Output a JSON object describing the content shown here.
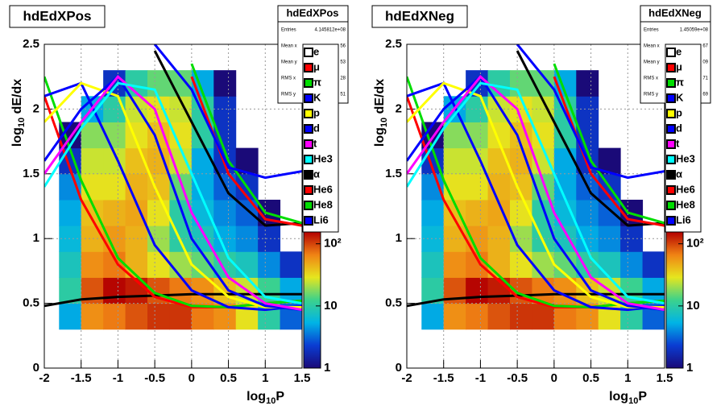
{
  "chart_data": [
    {
      "type": "hist2d_curves",
      "title": "hdEdXPos",
      "stats": {
        "title": "hdEdXPos",
        "entries_label": "Entries",
        "entries": "4.145812e+08",
        "rows": [
          [
            "Mean x",
            "56"
          ],
          [
            "Mean y",
            "53"
          ],
          [
            "RMS x",
            "28"
          ],
          [
            "RMS y",
            "51"
          ]
        ]
      },
      "xlabel": {
        "base": "log",
        "sub": "10",
        "rest": "P"
      },
      "ylabel": {
        "base": "log",
        "sub": "10",
        "rest": " dE/dx"
      },
      "xlim": [
        -2,
        1.5
      ],
      "xticks": [
        -2,
        -1.5,
        -1,
        -0.5,
        0,
        0.5,
        1,
        1.5
      ],
      "ylim": [
        0,
        2.5
      ],
      "yticks": [
        0,
        0.5,
        1,
        1.5,
        2,
        2.5
      ],
      "grid": true,
      "xbins": [
        -1.8,
        -1.5,
        -1.2,
        -0.9,
        -0.6,
        -0.3,
        0,
        0.3,
        0.6,
        0.9,
        1.2,
        1.5
      ],
      "ybins": [
        0.3,
        0.5,
        0.7,
        0.9,
        1.1,
        1.3,
        1.5,
        1.7,
        1.9,
        2.1,
        2.3
      ],
      "z": [
        [
          5,
          60,
          70,
          90,
          110,
          110,
          70,
          60,
          30,
          10,
          3
        ],
        [
          10,
          90,
          150,
          130,
          90,
          70,
          60,
          40,
          25,
          12,
          5
        ],
        [
          8,
          60,
          70,
          45,
          30,
          20,
          15,
          10,
          8,
          4,
          2
        ],
        [
          6,
          45,
          55,
          45,
          20,
          10,
          8,
          5,
          4,
          2,
          0
        ],
        [
          5,
          40,
          45,
          50,
          30,
          10,
          6,
          4,
          3,
          1,
          0
        ],
        [
          4,
          30,
          30,
          45,
          40,
          15,
          5,
          3,
          2,
          0,
          0
        ],
        [
          2,
          25,
          25,
          40,
          45,
          25,
          5,
          2,
          1,
          0,
          0
        ],
        [
          1,
          18,
          18,
          30,
          40,
          30,
          10,
          2,
          0,
          0,
          0
        ],
        [
          0,
          5,
          10,
          25,
          30,
          25,
          10,
          2,
          0,
          0,
          0
        ],
        [
          0,
          0,
          2,
          10,
          15,
          15,
          5,
          1,
          0,
          0,
          0
        ]
      ],
      "zlim": [
        1,
        155
      ],
      "zticks": [
        1,
        10,
        {
          "value": 100,
          "label": "10²"
        }
      ],
      "palette": [
        "#1a0a78",
        "#0a3cd2",
        "#00b4e6",
        "#3cd28c",
        "#e6e61e",
        "#f08214",
        "#b40000"
      ],
      "x": [
        -2,
        -1.5,
        -1,
        -0.5,
        0,
        0.5,
        1,
        1.5
      ],
      "series": [
        {
          "name": "e",
          "color": "#ffffff",
          "line": "#000000",
          "values": [
            0.48,
            0.53,
            0.55,
            0.56,
            0.57,
            0.57,
            0.57,
            0.57
          ]
        },
        {
          "name": "μ",
          "color": "#ff0000",
          "values": [
            2.1,
            1.3,
            0.8,
            0.55,
            0.47,
            0.47,
            0.5,
            0.52
          ]
        },
        {
          "name": "π",
          "color": "#00dd00",
          "values": [
            2.25,
            1.45,
            0.85,
            0.58,
            0.48,
            0.47,
            0.5,
            0.52
          ]
        },
        {
          "name": "K",
          "color": "#0000ff",
          "values": [
            2.1,
            2.2,
            1.6,
            0.95,
            0.6,
            0.47,
            0.45,
            0.48
          ]
        },
        {
          "name": "p",
          "color": "#ffff00",
          "values": [
            1.9,
            2.2,
            2.1,
            1.4,
            0.8,
            0.55,
            0.47,
            0.47
          ]
        },
        {
          "name": "d",
          "color": "#0000ff",
          "values": [
            1.6,
            2.0,
            2.25,
            1.8,
            1.0,
            0.6,
            0.48,
            0.45
          ]
        },
        {
          "name": "t",
          "color": "#ff00ff",
          "values": [
            1.5,
            1.9,
            2.25,
            2.0,
            1.2,
            0.7,
            0.5,
            0.45
          ]
        },
        {
          "name": "He3",
          "color": "#00ffff",
          "values": [
            1.4,
            1.85,
            2.2,
            2.15,
            1.5,
            0.85,
            0.55,
            0.5
          ]
        },
        {
          "name": "α",
          "color": "#000000",
          "values": [
            null,
            null,
            null,
            2.45,
            1.9,
            1.35,
            1.1,
            1.12
          ]
        },
        {
          "name": "He6",
          "color": "#ff0000",
          "values": [
            null,
            null,
            null,
            null,
            2.25,
            1.5,
            1.15,
            1.1
          ]
        },
        {
          "name": "He8",
          "color": "#00dd00",
          "values": [
            null,
            null,
            null,
            null,
            2.35,
            1.6,
            1.2,
            1.12
          ]
        },
        {
          "name": "Li6",
          "color": "#0000ff",
          "values": [
            null,
            null,
            null,
            2.5,
            2.15,
            1.55,
            1.47,
            1.52
          ]
        }
      ]
    },
    {
      "type": "hist2d_curves",
      "title": "hdEdXNeg",
      "stats": {
        "title": "hdEdXNeg",
        "entries_label": "Entries",
        "entries": "1.45059e+08",
        "rows": [
          [
            "Mean x",
            "67"
          ],
          [
            "Mean y",
            "09"
          ],
          [
            "RMS x",
            "71"
          ],
          [
            "RMS y",
            "69"
          ]
        ]
      },
      "xlabel": {
        "base": "log",
        "sub": "10",
        "rest": "P"
      },
      "ylabel": {
        "base": "log",
        "sub": "10",
        "rest": " dE/dx"
      },
      "xlim": [
        -2,
        1.5
      ],
      "xticks": [
        -2,
        -1.5,
        -1,
        -0.5,
        0,
        0.5,
        1,
        1.5
      ],
      "ylim": [
        0,
        2.5
      ],
      "yticks": [
        0,
        0.5,
        1,
        1.5,
        2,
        2.5
      ],
      "grid": true,
      "xbins": [
        -1.8,
        -1.5,
        -1.2,
        -0.9,
        -0.6,
        -0.3,
        0,
        0.3,
        0.6,
        0.9,
        1.2,
        1.5
      ],
      "ybins": [
        0.3,
        0.5,
        0.7,
        0.9,
        1.1,
        1.3,
        1.5,
        1.7,
        1.9,
        2.1,
        2.3
      ],
      "z": [
        [
          5,
          60,
          70,
          90,
          110,
          110,
          70,
          60,
          30,
          10,
          3
        ],
        [
          10,
          90,
          150,
          130,
          90,
          70,
          60,
          40,
          25,
          12,
          5
        ],
        [
          8,
          60,
          70,
          45,
          30,
          20,
          15,
          10,
          8,
          4,
          2
        ],
        [
          6,
          45,
          55,
          45,
          20,
          10,
          8,
          5,
          4,
          2,
          0
        ],
        [
          5,
          40,
          45,
          50,
          30,
          10,
          6,
          4,
          3,
          1,
          0
        ],
        [
          4,
          30,
          30,
          45,
          40,
          15,
          5,
          3,
          2,
          0,
          0
        ],
        [
          2,
          25,
          25,
          40,
          45,
          25,
          5,
          2,
          1,
          0,
          0
        ],
        [
          1,
          18,
          18,
          30,
          40,
          30,
          10,
          2,
          0,
          0,
          0
        ],
        [
          0,
          5,
          10,
          25,
          30,
          25,
          10,
          2,
          0,
          0,
          0
        ],
        [
          0,
          0,
          2,
          10,
          15,
          15,
          5,
          1,
          0,
          0,
          0
        ]
      ],
      "zlim": [
        1,
        155
      ],
      "zticks": [
        1,
        10,
        {
          "value": 100,
          "label": "10²"
        }
      ],
      "palette": [
        "#1a0a78",
        "#0a3cd2",
        "#00b4e6",
        "#3cd28c",
        "#e6e61e",
        "#f08214",
        "#b40000"
      ],
      "x": [
        -2,
        -1.5,
        -1,
        -0.5,
        0,
        0.5,
        1,
        1.5
      ],
      "series": [
        {
          "name": "e",
          "color": "#ffffff",
          "line": "#000000",
          "values": [
            0.48,
            0.53,
            0.55,
            0.56,
            0.57,
            0.57,
            0.57,
            0.57
          ]
        },
        {
          "name": "μ",
          "color": "#ff0000",
          "values": [
            2.1,
            1.3,
            0.8,
            0.55,
            0.47,
            0.47,
            0.5,
            0.52
          ]
        },
        {
          "name": "π",
          "color": "#00dd00",
          "values": [
            2.25,
            1.45,
            0.85,
            0.58,
            0.48,
            0.47,
            0.5,
            0.52
          ]
        },
        {
          "name": "K",
          "color": "#0000ff",
          "values": [
            2.1,
            2.2,
            1.6,
            0.95,
            0.6,
            0.47,
            0.45,
            0.48
          ]
        },
        {
          "name": "p",
          "color": "#ffff00",
          "values": [
            1.9,
            2.2,
            2.1,
            1.4,
            0.8,
            0.55,
            0.47,
            0.47
          ]
        },
        {
          "name": "d",
          "color": "#0000ff",
          "values": [
            1.6,
            2.0,
            2.25,
            1.8,
            1.0,
            0.6,
            0.48,
            0.45
          ]
        },
        {
          "name": "t",
          "color": "#ff00ff",
          "values": [
            1.5,
            1.9,
            2.25,
            2.0,
            1.2,
            0.7,
            0.5,
            0.45
          ]
        },
        {
          "name": "He3",
          "color": "#00ffff",
          "values": [
            1.4,
            1.85,
            2.2,
            2.15,
            1.5,
            0.85,
            0.55,
            0.5
          ]
        },
        {
          "name": "α",
          "color": "#000000",
          "values": [
            null,
            null,
            null,
            2.45,
            1.9,
            1.35,
            1.1,
            1.12
          ]
        },
        {
          "name": "He6",
          "color": "#ff0000",
          "values": [
            null,
            null,
            null,
            null,
            2.25,
            1.5,
            1.15,
            1.1
          ]
        },
        {
          "name": "He8",
          "color": "#00dd00",
          "values": [
            null,
            null,
            null,
            null,
            2.35,
            1.6,
            1.2,
            1.12
          ]
        },
        {
          "name": "Li6",
          "color": "#0000ff",
          "values": [
            null,
            null,
            null,
            2.5,
            2.15,
            1.55,
            1.47,
            1.52
          ]
        }
      ]
    }
  ]
}
